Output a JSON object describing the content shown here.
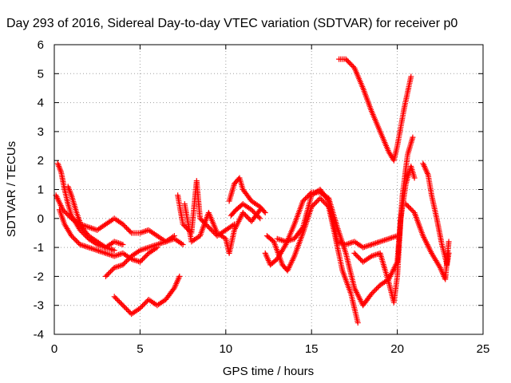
{
  "chart_data": {
    "type": "scatter",
    "title": "Day 293 of 2016, Sidereal Day-to-day VTEC variation (SDTVAR) for receiver p0",
    "xlabel": "GPS time / hours",
    "ylabel": "SDTVAR / TECUs",
    "xlim": [
      0,
      25
    ],
    "ylim": [
      -4,
      6
    ],
    "xticks": [
      0,
      5,
      10,
      15,
      20,
      25
    ],
    "yticks": [
      -4,
      -3,
      -2,
      -1,
      0,
      1,
      2,
      3,
      4,
      5,
      6
    ],
    "grid": true,
    "marker": "+",
    "color": "#ff0000",
    "tracks": [
      [
        [
          0.2,
          1.9
        ],
        [
          0.4,
          1.6
        ],
        [
          0.6,
          1.0
        ],
        [
          0.8,
          0.5
        ],
        [
          1.0,
          0.1
        ],
        [
          1.5,
          -0.4
        ],
        [
          2.0,
          -0.7
        ],
        [
          2.5,
          -0.9
        ],
        [
          3.0,
          -1.0
        ],
        [
          3.5,
          -0.8
        ],
        [
          4.0,
          -0.9
        ]
      ],
      [
        [
          0.1,
          0.8
        ],
        [
          0.5,
          0.3
        ],
        [
          1.0,
          0.0
        ],
        [
          1.5,
          -0.2
        ],
        [
          2.0,
          -0.3
        ],
        [
          2.5,
          -0.4
        ],
        [
          3.0,
          -0.2
        ],
        [
          3.5,
          0.0
        ],
        [
          4.0,
          -0.2
        ],
        [
          4.5,
          -0.5
        ],
        [
          5.0,
          -0.5
        ],
        [
          5.5,
          -0.4
        ],
        [
          6.0,
          -0.6
        ],
        [
          6.5,
          -0.8
        ],
        [
          7.0,
          -0.6
        ]
      ],
      [
        [
          0.3,
          0.3
        ],
        [
          0.6,
          -0.2
        ],
        [
          1.0,
          -0.6
        ],
        [
          1.5,
          -0.9
        ],
        [
          2.0,
          -1.0
        ],
        [
          2.5,
          -1.1
        ],
        [
          3.0,
          -1.2
        ],
        [
          3.5,
          -1.3
        ],
        [
          4.0,
          -1.2
        ],
        [
          4.5,
          -1.4
        ],
        [
          5.0,
          -1.5
        ],
        [
          5.5,
          -1.2
        ],
        [
          6.0,
          -1.0
        ]
      ],
      [
        [
          0.8,
          1.1
        ],
        [
          1.0,
          0.8
        ],
        [
          1.3,
          0.2
        ],
        [
          1.6,
          -0.3
        ],
        [
          2.0,
          -0.6
        ],
        [
          2.5,
          -0.8
        ],
        [
          3.0,
          -1.0
        ],
        [
          3.5,
          -1.1
        ]
      ],
      [
        [
          3.0,
          -2.0
        ],
        [
          3.5,
          -1.7
        ],
        [
          4.0,
          -1.6
        ],
        [
          4.5,
          -1.3
        ],
        [
          5.0,
          -1.1
        ],
        [
          5.5,
          -1.0
        ],
        [
          6.0,
          -0.9
        ],
        [
          6.5,
          -0.8
        ],
        [
          7.0,
          -0.7
        ],
        [
          7.5,
          -0.9
        ]
      ],
      [
        [
          3.5,
          -2.7
        ],
        [
          4.0,
          -3.0
        ],
        [
          4.5,
          -3.3
        ],
        [
          5.0,
          -3.1
        ],
        [
          5.5,
          -2.8
        ],
        [
          6.0,
          -3.0
        ],
        [
          6.5,
          -2.8
        ],
        [
          7.0,
          -2.4
        ],
        [
          7.3,
          -2.0
        ]
      ],
      [
        [
          7.2,
          0.8
        ],
        [
          7.5,
          -0.2
        ],
        [
          8.0,
          -0.5
        ],
        [
          8.3,
          1.3
        ],
        [
          8.5,
          0.0
        ],
        [
          9.0,
          -0.3
        ],
        [
          9.5,
          -0.6
        ],
        [
          10.0,
          -0.4
        ],
        [
          10.5,
          -0.2
        ]
      ],
      [
        [
          7.6,
          0.5
        ],
        [
          8.0,
          -0.8
        ],
        [
          8.5,
          -0.6
        ],
        [
          9.0,
          0.2
        ],
        [
          9.5,
          -0.5
        ],
        [
          10.0,
          -0.7
        ],
        [
          10.2,
          -1.2
        ],
        [
          10.5,
          -0.4
        ],
        [
          11.0,
          0.2
        ],
        [
          11.5,
          -0.1
        ],
        [
          12.0,
          0.3
        ]
      ],
      [
        [
          10.2,
          0.6
        ],
        [
          10.5,
          1.2
        ],
        [
          10.8,
          1.4
        ],
        [
          11.0,
          1.0
        ],
        [
          11.5,
          0.6
        ],
        [
          12.0,
          0.4
        ],
        [
          12.3,
          0.2
        ]
      ],
      [
        [
          10.3,
          0.1
        ],
        [
          10.6,
          0.3
        ],
        [
          11.0,
          0.5
        ],
        [
          11.5,
          0.3
        ],
        [
          12.0,
          0.0
        ]
      ],
      [
        [
          12.3,
          -1.2
        ],
        [
          12.6,
          -1.6
        ],
        [
          13.0,
          -1.4
        ],
        [
          13.5,
          -0.9
        ],
        [
          14.0,
          -0.2
        ],
        [
          14.5,
          0.6
        ],
        [
          15.0,
          0.9
        ],
        [
          15.5,
          0.9
        ],
        [
          16.0,
          0.7
        ],
        [
          16.5,
          -0.3
        ],
        [
          17.0,
          -1.2
        ],
        [
          17.5,
          -2.4
        ],
        [
          18.0,
          -3.0
        ],
        [
          18.5,
          -2.6
        ],
        [
          19.0,
          -2.3
        ],
        [
          19.5,
          -2.1
        ],
        [
          20.0,
          -1.5
        ],
        [
          20.3,
          0.8
        ],
        [
          20.6,
          2.2
        ],
        [
          20.9,
          2.8
        ]
      ],
      [
        [
          12.4,
          -0.6
        ],
        [
          12.8,
          -0.8
        ],
        [
          13.3,
          -1.6
        ],
        [
          13.6,
          -1.8
        ],
        [
          14.0,
          -1.3
        ],
        [
          14.5,
          -0.5
        ],
        [
          15.0,
          0.4
        ],
        [
          15.5,
          0.7
        ],
        [
          16.0,
          0.4
        ],
        [
          16.3,
          -0.4
        ],
        [
          16.8,
          -1.8
        ],
        [
          17.3,
          -2.6
        ],
        [
          17.7,
          -3.6
        ]
      ],
      [
        [
          13.0,
          -0.7
        ],
        [
          13.5,
          -0.8
        ],
        [
          14.0,
          -0.7
        ],
        [
          14.5,
          -0.3
        ],
        [
          15.0,
          0.8
        ],
        [
          15.5,
          1.0
        ],
        [
          16.0,
          0.6
        ],
        [
          16.5,
          -0.8
        ],
        [
          17.0,
          -0.9
        ],
        [
          17.5,
          -0.8
        ],
        [
          18.0,
          -1.0
        ],
        [
          18.5,
          -0.9
        ],
        [
          19.0,
          -0.8
        ],
        [
          19.5,
          -0.7
        ],
        [
          20.0,
          -0.6
        ]
      ],
      [
        [
          16.6,
          5.5
        ],
        [
          17.0,
          5.5
        ],
        [
          17.5,
          5.2
        ],
        [
          18.0,
          4.5
        ],
        [
          18.5,
          3.7
        ],
        [
          19.0,
          3.0
        ],
        [
          19.5,
          2.3
        ],
        [
          19.8,
          2.0
        ],
        [
          20.0,
          2.5
        ],
        [
          20.4,
          3.8
        ],
        [
          20.8,
          4.9
        ]
      ],
      [
        [
          17.5,
          -1.2
        ],
        [
          18.0,
          -1.5
        ],
        [
          18.5,
          -1.3
        ],
        [
          19.0,
          -1.2
        ],
        [
          19.5,
          -2.2
        ],
        [
          19.8,
          -2.9
        ],
        [
          20.0,
          -2.0
        ],
        [
          20.2,
          0.0
        ],
        [
          20.5,
          1.2
        ],
        [
          20.8,
          1.8
        ],
        [
          21.0,
          1.4
        ]
      ],
      [
        [
          20.5,
          0.5
        ],
        [
          21.0,
          0.2
        ],
        [
          21.5,
          -0.6
        ],
        [
          22.0,
          -1.2
        ],
        [
          22.5,
          -1.7
        ],
        [
          22.8,
          -2.1
        ],
        [
          23.0,
          -0.8
        ]
      ],
      [
        [
          21.5,
          1.9
        ],
        [
          21.8,
          1.5
        ],
        [
          22.0,
          0.8
        ],
        [
          22.3,
          0.0
        ],
        [
          22.6,
          -0.9
        ],
        [
          22.9,
          -1.6
        ],
        [
          23.0,
          -1.2
        ]
      ]
    ]
  }
}
